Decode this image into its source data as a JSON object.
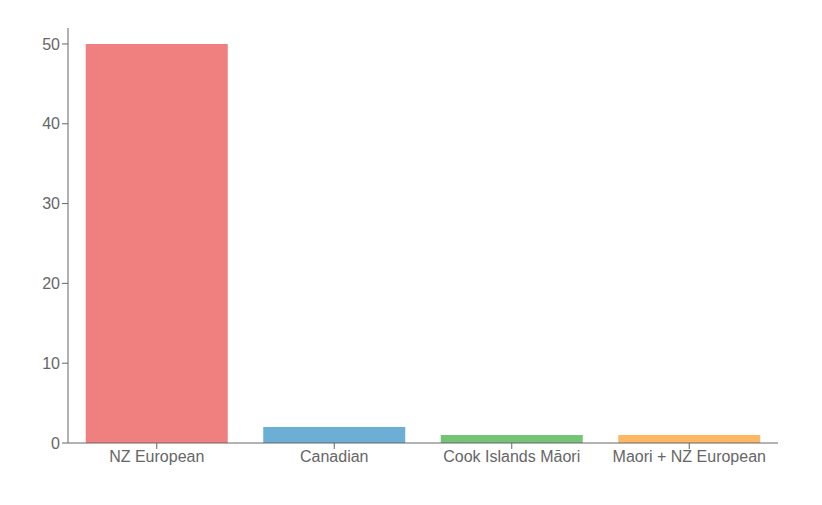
{
  "chart_data": {
    "type": "bar",
    "categories": [
      "NZ European",
      "Canadian",
      "Cook Islands Māori",
      "Maori + NZ European"
    ],
    "values": [
      50,
      2,
      1,
      1
    ],
    "colors": [
      "#F08080",
      "#6BAED6",
      "#74C476",
      "#FDB863"
    ],
    "ylim": [
      0,
      52
    ],
    "yticks": [
      0,
      10,
      20,
      30,
      40,
      50
    ],
    "grid": false
  }
}
